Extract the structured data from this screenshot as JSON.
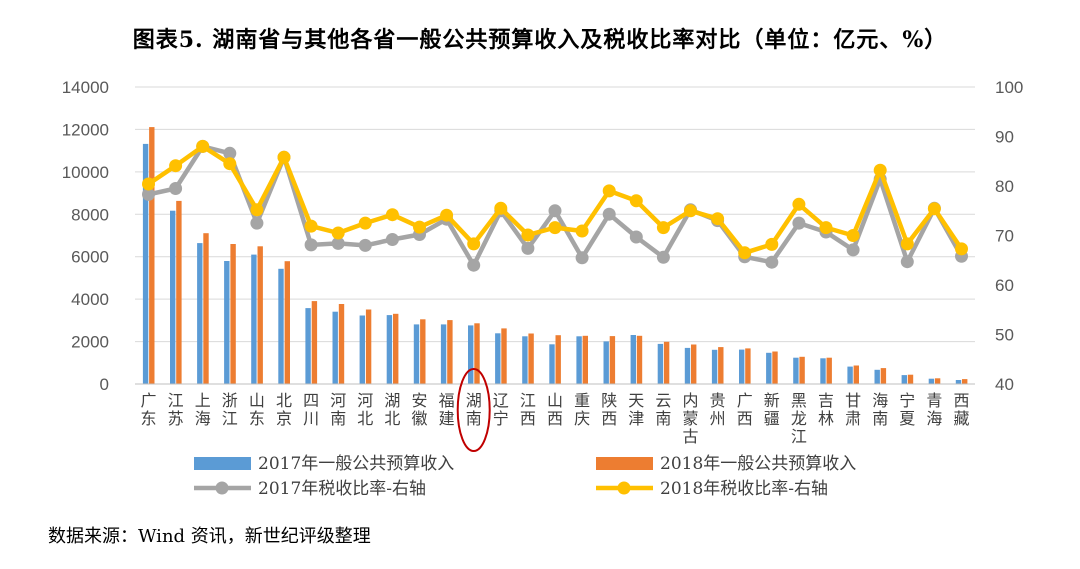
{
  "title": "图表5.   湖南省与其他各省一般公共预算收入及税收比率对比（单位：亿元、%）",
  "source": "数据来源：Wind 资讯，新世纪评级整理",
  "colors": {
    "bar2017": "#5B9BD5",
    "bar2018": "#ED7D31",
    "line2017": "#A5A5A5",
    "line2018": "#FFC000",
    "highlight": "#C00000",
    "grid": "#D9D9D9"
  },
  "chart_data": {
    "type": "bar",
    "categories": [
      "广东",
      "江苏",
      "上海",
      "浙江",
      "山东",
      "北京",
      "四川",
      "河南",
      "河北",
      "湖北",
      "安徽",
      "福建",
      "湖南",
      "辽宁",
      "江西",
      "山西",
      "重庆",
      "陕西",
      "天津",
      "云南",
      "内蒙古",
      "贵州",
      "广西",
      "新疆",
      "黑龙江",
      "吉林",
      "甘肃",
      "海南",
      "宁夏",
      "青海",
      "西藏"
    ],
    "category_labels": [
      [
        "广",
        "东"
      ],
      [
        "江",
        "苏"
      ],
      [
        "上",
        "海"
      ],
      [
        "浙",
        "江"
      ],
      [
        "山",
        "东"
      ],
      [
        "北",
        "京"
      ],
      [
        "四",
        "川"
      ],
      [
        "河",
        "南"
      ],
      [
        "河",
        "北"
      ],
      [
        "湖",
        "北"
      ],
      [
        "安",
        "徽"
      ],
      [
        "福",
        "建"
      ],
      [
        "湖",
        "南"
      ],
      [
        "辽",
        "宁"
      ],
      [
        "江",
        "西"
      ],
      [
        "山",
        "西"
      ],
      [
        "重",
        "庆"
      ],
      [
        "陕",
        "西"
      ],
      [
        "天",
        "津"
      ],
      [
        "云",
        "南"
      ],
      [
        "内",
        "蒙",
        "古"
      ],
      [
        "贵",
        "州"
      ],
      [
        "广",
        "西"
      ],
      [
        "新",
        "疆"
      ],
      [
        "黑",
        "龙",
        "江"
      ],
      [
        "吉",
        "林"
      ],
      [
        "甘",
        "肃"
      ],
      [
        "海",
        "南"
      ],
      [
        "宁",
        "夏"
      ],
      [
        "青",
        "海"
      ],
      [
        "西",
        "藏"
      ]
    ],
    "series": [
      {
        "name": "2017年一般公共预算收入",
        "type": "bar",
        "axis": "left",
        "values": [
          11320,
          8170,
          6640,
          5800,
          6100,
          5430,
          3580,
          3410,
          3230,
          3250,
          2810,
          2810,
          2760,
          2390,
          2250,
          1870,
          2250,
          2010,
          2310,
          1890,
          1700,
          1610,
          1620,
          1470,
          1240,
          1210,
          820,
          670,
          420,
          250,
          190
        ]
      },
      {
        "name": "2018年一般公共预算收入",
        "type": "bar",
        "axis": "left",
        "values": [
          12110,
          8630,
          7110,
          6600,
          6490,
          5790,
          3910,
          3770,
          3510,
          3310,
          3050,
          3010,
          2860,
          2620,
          2380,
          2300,
          2270,
          2260,
          2270,
          1990,
          1860,
          1740,
          1680,
          1530,
          1280,
          1240,
          870,
          750,
          440,
          270,
          230
        ]
      },
      {
        "name": "2017年税收比率-右轴",
        "type": "line",
        "axis": "right",
        "values": [
          78.3,
          79.5,
          88,
          86.6,
          72.5,
          85.8,
          68.1,
          68.4,
          68,
          69.2,
          70.2,
          73.3,
          64,
          75,
          67.4,
          75,
          65.5,
          74.3,
          69.7,
          65.6,
          75.2,
          73,
          65.7,
          64.6,
          72.5,
          70.7,
          67.1,
          81.4,
          64.7,
          75.5,
          65.8
        ]
      },
      {
        "name": "2018年税收比率-右轴",
        "type": "line",
        "axis": "right",
        "values": [
          80.4,
          84.1,
          88,
          84.5,
          75.2,
          85.8,
          71.9,
          70.5,
          72.5,
          74.2,
          71.7,
          74.1,
          68.3,
          75.5,
          70.1,
          71.6,
          70.9,
          79,
          77,
          71.6,
          75,
          73.4,
          66.5,
          68.2,
          76.3,
          71.6,
          70,
          83.2,
          68.3,
          75.4,
          67.3
        ]
      }
    ],
    "highlight_category": "湖南",
    "y_left": {
      "min": 0,
      "max": 14000,
      "ticks": [
        0,
        2000,
        4000,
        6000,
        8000,
        10000,
        12000,
        14000
      ]
    },
    "y_right": {
      "min": 40,
      "max": 100,
      "ticks": [
        40,
        50,
        60,
        70,
        80,
        90,
        100
      ]
    },
    "grid": true,
    "legend_position": "bottom"
  }
}
